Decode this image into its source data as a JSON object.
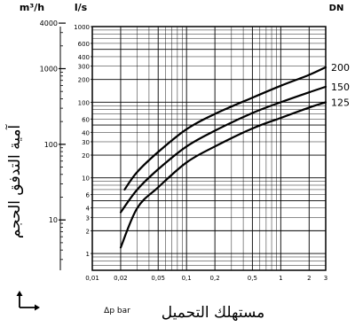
{
  "chart_data": {
    "type": "line",
    "x_axis": {
      "label": "مستهلك التحميل",
      "unit_label": "Δp bar",
      "scale": "log",
      "range": [
        0.01,
        3
      ],
      "ticks": [
        "0,01",
        "0,02",
        "0,05",
        "0,1",
        "0,2",
        "0,5",
        "1",
        "2",
        "3"
      ]
    },
    "y_axis_right": {
      "unit": "l/s",
      "scale": "log",
      "range": [
        0.6,
        1000
      ],
      "ticks": [
        "1000",
        "600",
        "400",
        "300",
        "200",
        "100",
        "60",
        "40",
        "30",
        "20",
        "10",
        "6",
        "4",
        "3",
        "2",
        "1"
      ]
    },
    "y_axis_left": {
      "unit": "m³/h",
      "label": "آمية التدفق الحجم",
      "scale": "log",
      "ticks": [
        "4000",
        "1000",
        "100",
        "10"
      ]
    },
    "legend": {
      "title": "DN",
      "placement": "right"
    },
    "series": [
      {
        "name": "200",
        "x": [
          0.022,
          0.03,
          0.05,
          0.1,
          0.2,
          0.5,
          1,
          2,
          3
        ],
        "y": [
          7,
          12,
          22,
          44,
          70,
          115,
          165,
          230,
          290
        ]
      },
      {
        "name": "150",
        "x": [
          0.02,
          0.03,
          0.05,
          0.1,
          0.2,
          0.5,
          1,
          2,
          3
        ],
        "y": [
          3.5,
          7,
          13,
          26,
          42,
          72,
          100,
          135,
          160
        ]
      },
      {
        "name": "125",
        "x": [
          0.02,
          0.03,
          0.05,
          0.1,
          0.2,
          0.5,
          1,
          2,
          3
        ],
        "y": [
          1.2,
          4,
          7.5,
          16,
          26,
          45,
          62,
          85,
          100
        ]
      }
    ]
  },
  "indicator": {
    "icon": "axis-corner-arrow-icon"
  }
}
